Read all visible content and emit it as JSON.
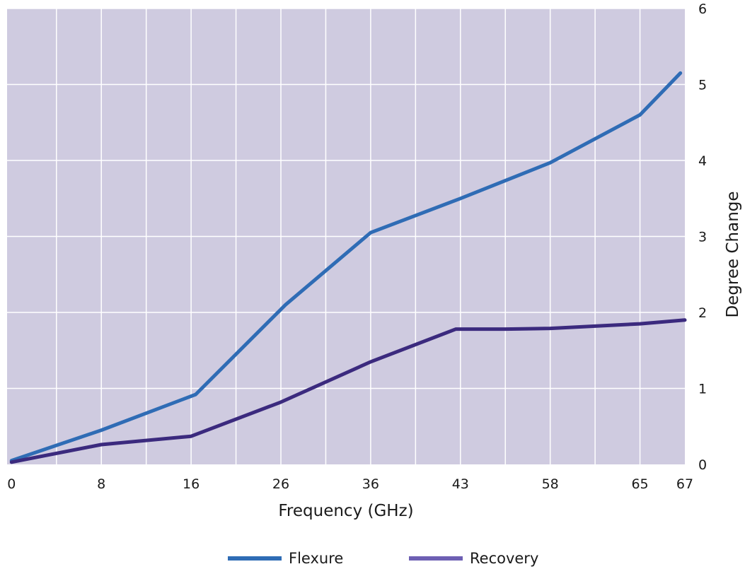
{
  "chart_data": {
    "type": "line",
    "title": "",
    "xlabel": "Frequency (GHz)",
    "ylabel": "Degree Change",
    "x_tick_labels": [
      "0",
      "8",
      "16",
      "26",
      "36",
      "43",
      "58",
      "65",
      "67"
    ],
    "x_tick_positions": [
      0,
      1,
      2,
      3,
      4,
      5,
      6,
      7,
      7.5
    ],
    "xlim": [
      -0.05,
      7.5
    ],
    "ylim": [
      0,
      6
    ],
    "y_ticks": [
      0,
      1,
      2,
      3,
      4,
      5,
      6
    ],
    "y_tick_labels": [
      "0",
      "1",
      "2",
      "3",
      "4",
      "5",
      "6"
    ],
    "y_axis_side": "right",
    "grid": true,
    "background_color": "#cfcbe0",
    "grid_color": "#ffffff",
    "legend_position": "bottom-center",
    "series": [
      {
        "name": "Flexure",
        "color": "#2f6cb5",
        "points": [
          [
            0,
            0.05
          ],
          [
            1.0,
            0.45
          ],
          [
            2.05,
            0.92
          ],
          [
            3.05,
            2.1
          ],
          [
            4.0,
            3.05
          ],
          [
            5.0,
            3.5
          ],
          [
            6.0,
            3.97
          ],
          [
            7.0,
            4.6
          ],
          [
            7.45,
            5.15
          ]
        ]
      },
      {
        "name": "Recovery",
        "color": "#3b2a7e",
        "legend_color": "#6d5fb3",
        "points": [
          [
            0,
            0.03
          ],
          [
            1.0,
            0.26
          ],
          [
            2.0,
            0.37
          ],
          [
            3.0,
            0.82
          ],
          [
            4.0,
            1.35
          ],
          [
            4.95,
            1.78
          ],
          [
            5.5,
            1.78
          ],
          [
            6.0,
            1.79
          ],
          [
            7.0,
            1.85
          ],
          [
            7.5,
            1.9
          ]
        ]
      }
    ]
  }
}
